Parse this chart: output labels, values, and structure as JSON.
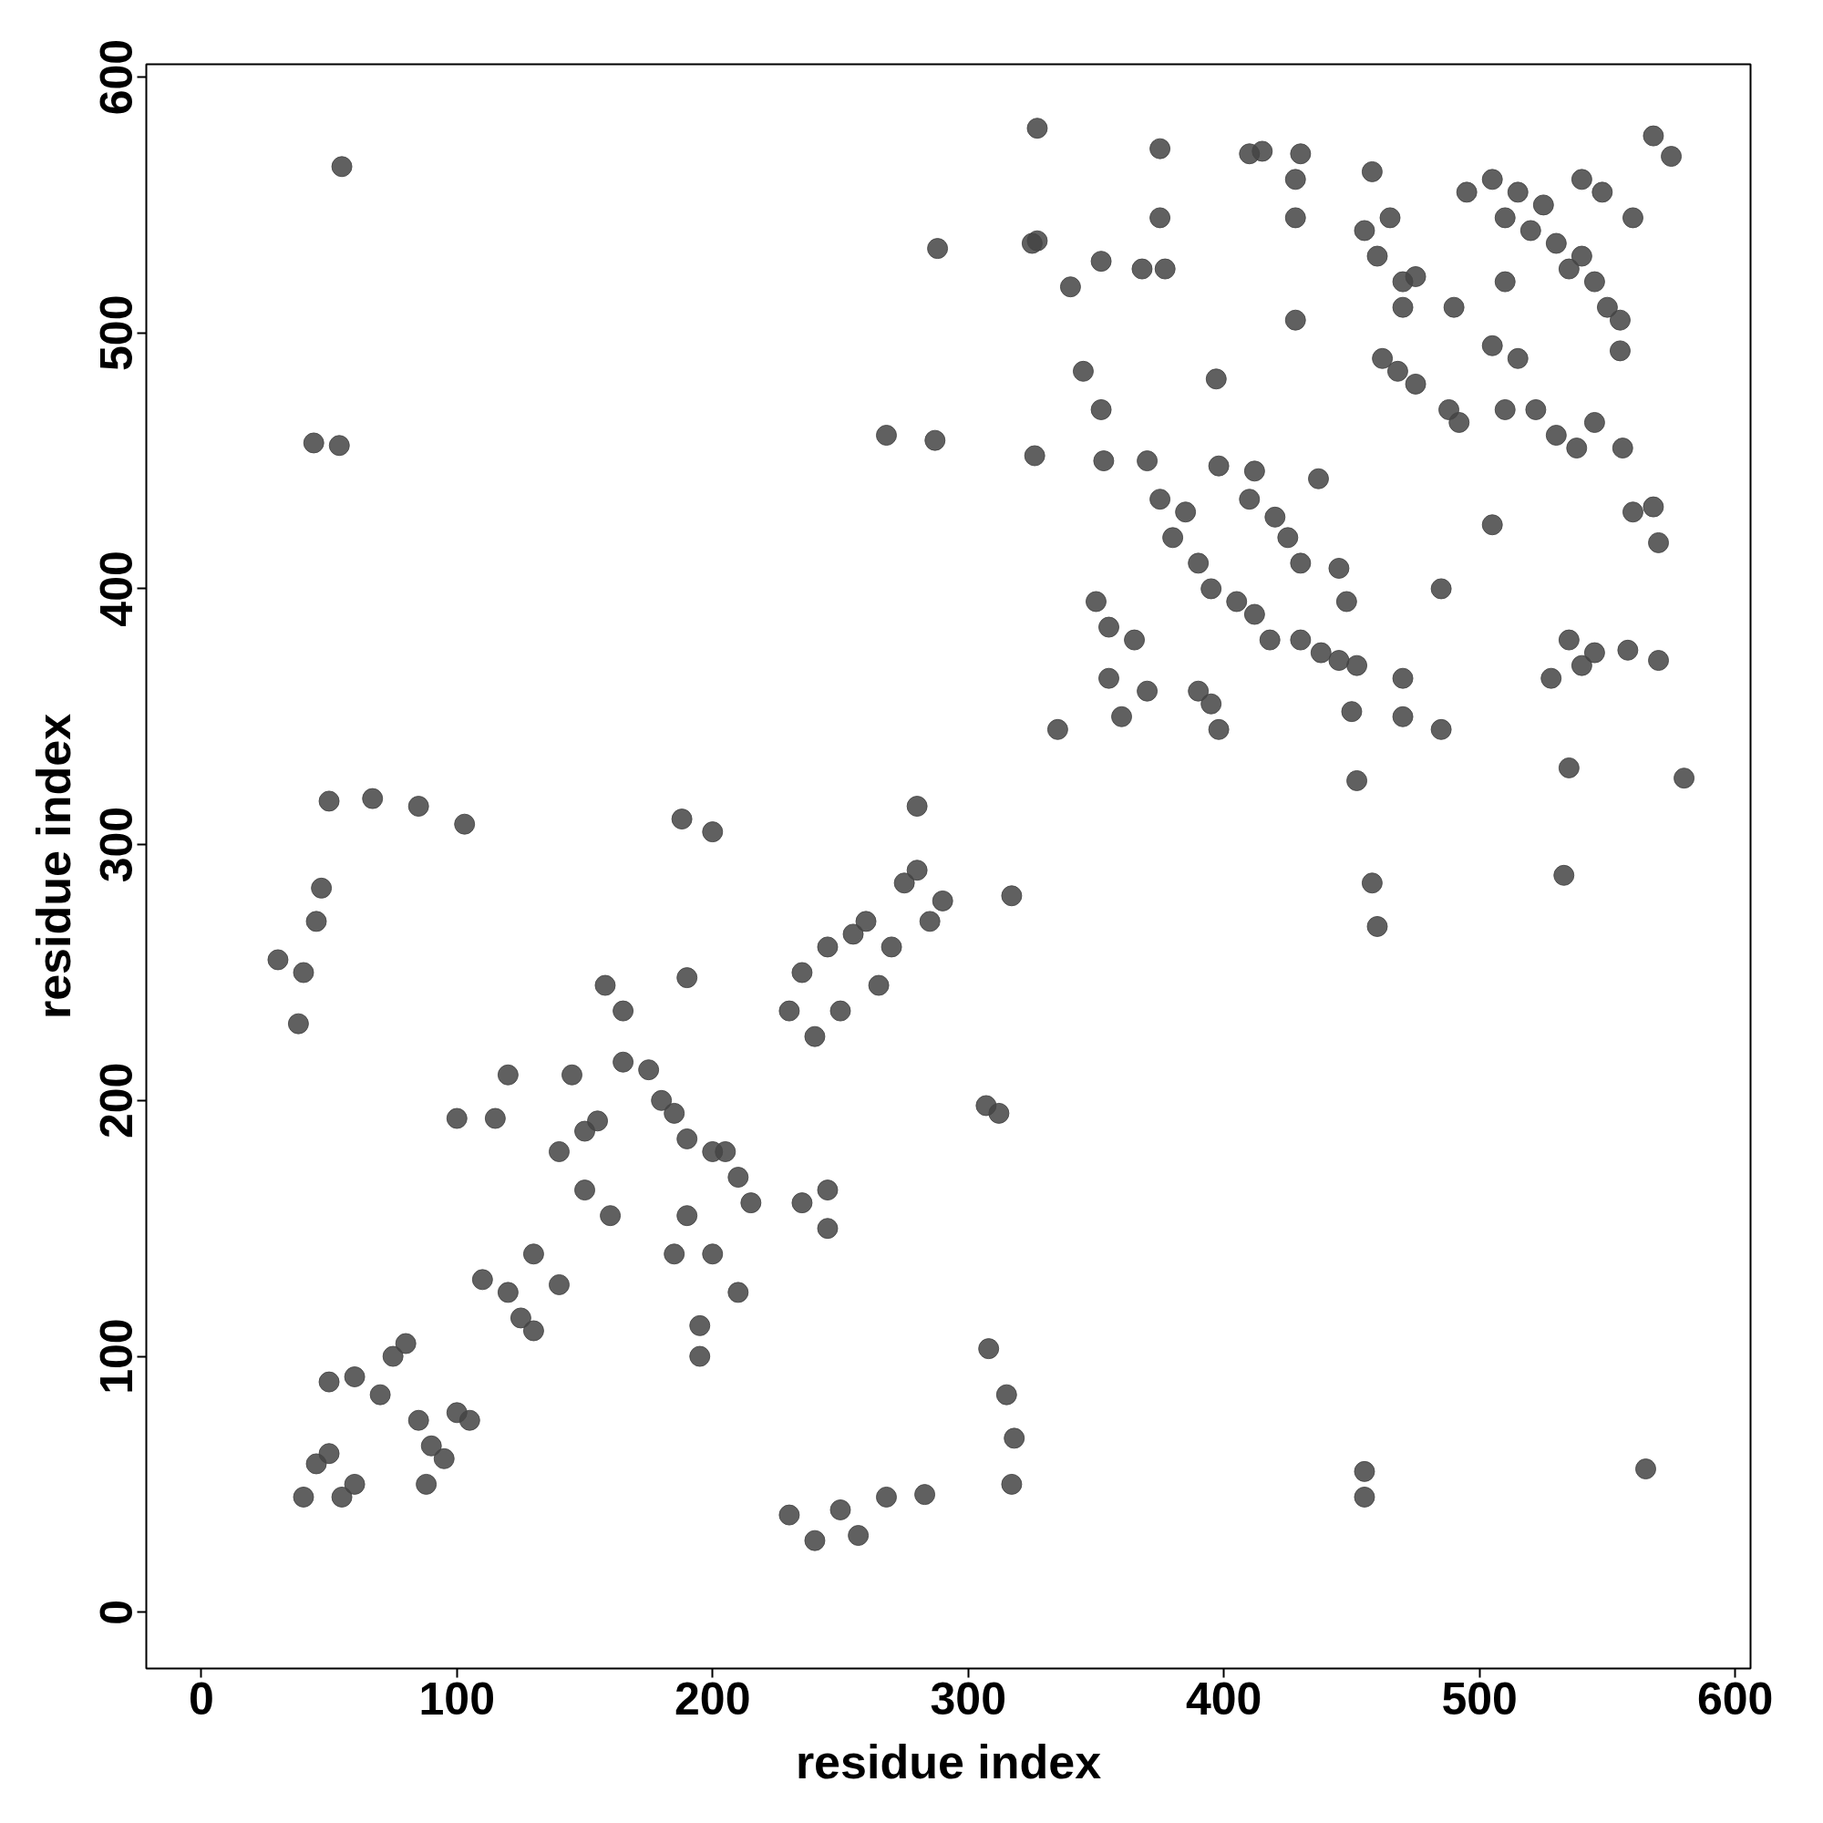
{
  "chart_data": {
    "type": "scatter",
    "xlabel": "residue index",
    "ylabel": "residue index",
    "xlim": [
      -21.5,
      606
    ],
    "ylim": [
      -22,
      605
    ],
    "xticks": [
      0,
      100,
      200,
      300,
      400,
      500,
      600
    ],
    "yticks": [
      0,
      100,
      200,
      300,
      400,
      500,
      600
    ],
    "grid": false,
    "marker": "circle",
    "series": [
      {
        "color": "#444444",
        "x": [
          40,
          45,
          50,
          55,
          60,
          50,
          60,
          70,
          75,
          80,
          85,
          90,
          95,
          100,
          105,
          88,
          110,
          120,
          125,
          130,
          130,
          140,
          140,
          150,
          155,
          145,
          150,
          160,
          165,
          175,
          180,
          185,
          190,
          200,
          205,
          185,
          190,
          200,
          210,
          210,
          215,
          195,
          195,
          230,
          240,
          245,
          250,
          260,
          265,
          270,
          275,
          280,
          285,
          290,
          235,
          255,
          245,
          245,
          235,
          200,
          188,
          158,
          165,
          190,
          120,
          100,
          115,
          30,
          40,
          38,
          45,
          47,
          50,
          67,
          85,
          103,
          55,
          44,
          54,
          230,
          240,
          250,
          257,
          268,
          283,
          308,
          315,
          318,
          317,
          307,
          312,
          317,
          268,
          287,
          288,
          280,
          327,
          327,
          326,
          340,
          345,
          352,
          353,
          352,
          350,
          355,
          355,
          360,
          365,
          370,
          368,
          375,
          377,
          370,
          375,
          380,
          385,
          390,
          395,
          390,
          395,
          398,
          397,
          398,
          410,
          420,
          425,
          430,
          405,
          412,
          418,
          430,
          438,
          445,
          452,
          412,
          428,
          428,
          428,
          430,
          437,
          445,
          448,
          450,
          452,
          455,
          458,
          460,
          465,
          470,
          475,
          470,
          462,
          468,
          475,
          488,
          492,
          485,
          485,
          470,
          470,
          490,
          495,
          505,
          510,
          515,
          520,
          525,
          530,
          535,
          540,
          545,
          550,
          555,
          560,
          540,
          548,
          510,
          515,
          505,
          522,
          530,
          538,
          545,
          535,
          540,
          545,
          528,
          535,
          533,
          556,
          560,
          568,
          558,
          570,
          570,
          580,
          568,
          575,
          375,
          415,
          455,
          455,
          458,
          460,
          565,
          335,
          325,
          410,
          555,
          505,
          510
        ],
        "values": [
          45,
          58,
          62,
          45,
          50,
          90,
          92,
          85,
          100,
          105,
          75,
          65,
          60,
          78,
          75,
          50,
          130,
          125,
          115,
          110,
          140,
          128,
          180,
          188,
          192,
          210,
          165,
          155,
          215,
          212,
          200,
          195,
          185,
          180,
          180,
          140,
          155,
          140,
          125,
          170,
          160,
          100,
          112,
          235,
          225,
          260,
          235,
          270,
          245,
          260,
          285,
          290,
          270,
          278,
          250,
          265,
          165,
          150,
          160,
          305,
          310,
          245,
          235,
          248,
          210,
          193,
          193,
          255,
          250,
          230,
          270,
          283,
          317,
          318,
          315,
          308,
          565,
          457,
          456,
          38,
          28,
          40,
          30,
          45,
          46,
          103,
          85,
          68,
          50,
          198,
          195,
          280,
          460,
          458,
          533,
          315,
          580,
          536,
          452,
          518,
          485,
          470,
          450,
          528,
          395,
          385,
          365,
          350,
          380,
          360,
          525,
          545,
          525,
          450,
          435,
          420,
          430,
          410,
          400,
          360,
          355,
          345,
          482,
          448,
          435,
          428,
          420,
          410,
          395,
          390,
          380,
          380,
          375,
          372,
          370,
          446,
          505,
          560,
          545,
          570,
          443,
          408,
          395,
          352,
          325,
          540,
          563,
          530,
          545,
          520,
          522,
          510,
          490,
          485,
          480,
          470,
          465,
          400,
          345,
          350,
          365,
          510,
          555,
          560,
          545,
          555,
          540,
          550,
          535,
          525,
          530,
          520,
          510,
          505,
          545,
          560,
          555,
          520,
          490,
          495,
          470,
          460,
          455,
          465,
          380,
          370,
          375,
          365,
          330,
          288,
          455,
          430,
          432,
          376,
          372,
          418,
          326,
          577,
          569,
          572,
          571,
          45,
          55,
          285,
          268,
          56,
          345,
          535,
          570,
          493,
          425,
          470
        ]
      }
    ]
  }
}
